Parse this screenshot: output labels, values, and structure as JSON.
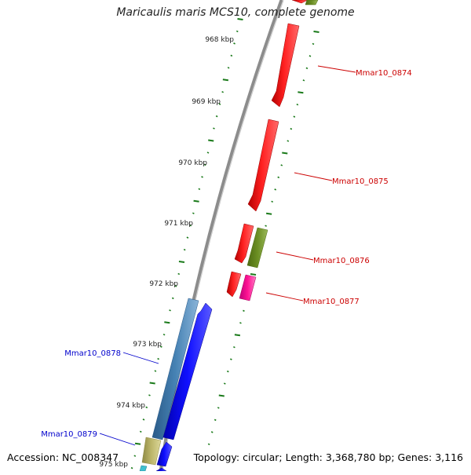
{
  "title": "Maricaulis maris MCS10, complete genome",
  "footer": {
    "accession": "Accession: NC_008347",
    "summary": "Topology: circular; Length: 3,368,780 bp; Genes: 3,116"
  },
  "ruler": {
    "ticks": [
      {
        "label": "968 kbp"
      },
      {
        "label": "969 kbp"
      },
      {
        "label": "970 kbp"
      },
      {
        "label": "971 kbp"
      },
      {
        "label": "972 kbp"
      },
      {
        "label": "973 kbp"
      },
      {
        "label": "974 kbp"
      },
      {
        "label": "975 kbp"
      }
    ]
  },
  "genes": [
    {
      "name": "Mmar10_0874",
      "strand": "+",
      "color": "#ff0000",
      "label_color": "#cc0000"
    },
    {
      "name": "Mmar10_0875",
      "strand": "+",
      "color": "#ff0000",
      "label_color": "#cc0000"
    },
    {
      "name": "Mmar10_0876",
      "strand": "+",
      "color": "#ff0000",
      "label_color": "#cc0000"
    },
    {
      "name": "Mmar10_0877",
      "strand": "+",
      "color": "#ff0000",
      "label_color": "#cc0000"
    },
    {
      "name": "Mmar10_0878",
      "strand": "-",
      "color": "#0000ff",
      "label_color": "#0000cc"
    },
    {
      "name": "Mmar10_0879",
      "strand": "-",
      "color": "#0000ff",
      "label_color": "#0000cc"
    }
  ],
  "colors": {
    "backbone": "#8c8c8c",
    "ticks": "#1a7a1a",
    "forward_cds": "#ff0000",
    "reverse_cds": "#0000ff",
    "olive_feature": "#6b8e23",
    "magenta_feature": "#ff1493",
    "steel_feature": "#4682b4",
    "khaki_feature": "#bdb76b"
  }
}
